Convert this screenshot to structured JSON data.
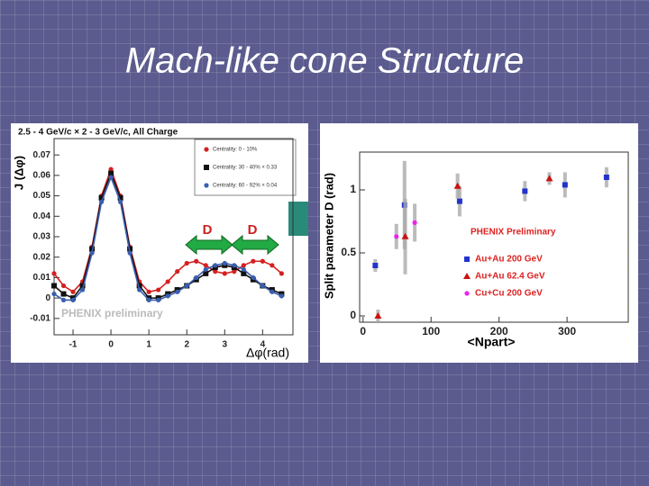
{
  "slide_title": "Mach-like cone Structure",
  "chart_data": [
    {
      "type": "line",
      "title": "2.5 - 4 GeV/c × 2 - 3 GeV/c,  All Charge",
      "y_label": "J (Δφ)",
      "x_label": "Δφ(rad)",
      "annotations": [
        "PHENIX preliminary",
        "D",
        "D"
      ],
      "x": [
        -1.5,
        -1.25,
        -1,
        -0.75,
        -0.5,
        -0.25,
        0,
        0.25,
        0.5,
        0.75,
        1,
        1.25,
        1.5,
        1.75,
        2,
        2.25,
        2.5,
        2.75,
        3,
        3.25,
        3.5,
        3.75,
        4,
        4.25,
        4.5
      ],
      "series": [
        {
          "name": "Centrality: 0 - 10%",
          "color": "#d62020",
          "marker": "circle",
          "values": [
            0.012,
            0.006,
            0.003,
            0.008,
            0.025,
            0.05,
            0.063,
            0.05,
            0.025,
            0.008,
            0.003,
            0.004,
            0.008,
            0.013,
            0.017,
            0.018,
            0.016,
            0.013,
            0.012,
            0.013,
            0.016,
            0.018,
            0.018,
            0.016,
            0.012
          ]
        },
        {
          "name": "Centrality: 30 - 40% × 0.33",
          "color": "#111111",
          "marker": "square",
          "values": [
            0.006,
            0.002,
            0.0,
            0.006,
            0.024,
            0.049,
            0.061,
            0.049,
            0.024,
            0.006,
            0.0,
            0.0,
            0.002,
            0.004,
            0.006,
            0.009,
            0.012,
            0.015,
            0.016,
            0.015,
            0.012,
            0.009,
            0.006,
            0.004,
            0.002
          ]
        },
        {
          "name": "Centrality: 60 - 92% × 0.04",
          "color": "#3a5fb0",
          "marker": "circle",
          "values": [
            0.002,
            -0.001,
            -0.001,
            0.004,
            0.022,
            0.047,
            0.059,
            0.047,
            0.022,
            0.004,
            -0.001,
            -0.001,
            0.001,
            0.003,
            0.006,
            0.01,
            0.014,
            0.016,
            0.017,
            0.016,
            0.014,
            0.01,
            0.006,
            0.003,
            0.001
          ]
        }
      ],
      "xlim": [
        -1.5,
        4.8
      ],
      "ylim": [
        -0.018,
        0.078
      ],
      "xticks": [
        -1,
        0,
        1,
        2,
        3,
        4
      ],
      "yticks": [
        -0.01,
        0,
        0.01,
        0.02,
        0.03,
        0.04,
        0.05,
        0.06,
        0.07
      ]
    },
    {
      "type": "scatter",
      "y_label": "Split parameter D (rad)",
      "x_label": "<Npart>",
      "annotations": [
        "PHENIX Preliminary"
      ],
      "series": [
        {
          "name": "Au+Au 200 GeV",
          "color": "#2233cc",
          "marker": "square",
          "x": [
            18,
            61,
            142,
            238,
            297,
            358
          ],
          "values": [
            0.4,
            0.88,
            0.91,
            0.99,
            1.04,
            1.1
          ],
          "errors": [
            0.05,
            0.35,
            0.12,
            0.08,
            0.1,
            0.08
          ]
        },
        {
          "name": "Au+Au 62.4 GeV",
          "color": "#cc1111",
          "marker": "triangle",
          "x": [
            22,
            62,
            139,
            274
          ],
          "values": [
            0.0,
            0.63,
            1.03,
            1.09
          ],
          "errors": [
            0.05,
            0.3,
            0.1,
            0.05
          ]
        },
        {
          "name": "Cu+Cu 200 GeV",
          "color": "#ee22ee",
          "marker": "circle",
          "x": [
            49,
            76
          ],
          "values": [
            0.63,
            0.74
          ],
          "errors": [
            0.1,
            0.15
          ]
        }
      ],
      "xlim": [
        -5,
        390
      ],
      "ylim": [
        -0.05,
        1.3
      ],
      "xticks": [
        0,
        100,
        200,
        300
      ],
      "yticks": [
        0,
        0.5,
        1
      ]
    }
  ]
}
